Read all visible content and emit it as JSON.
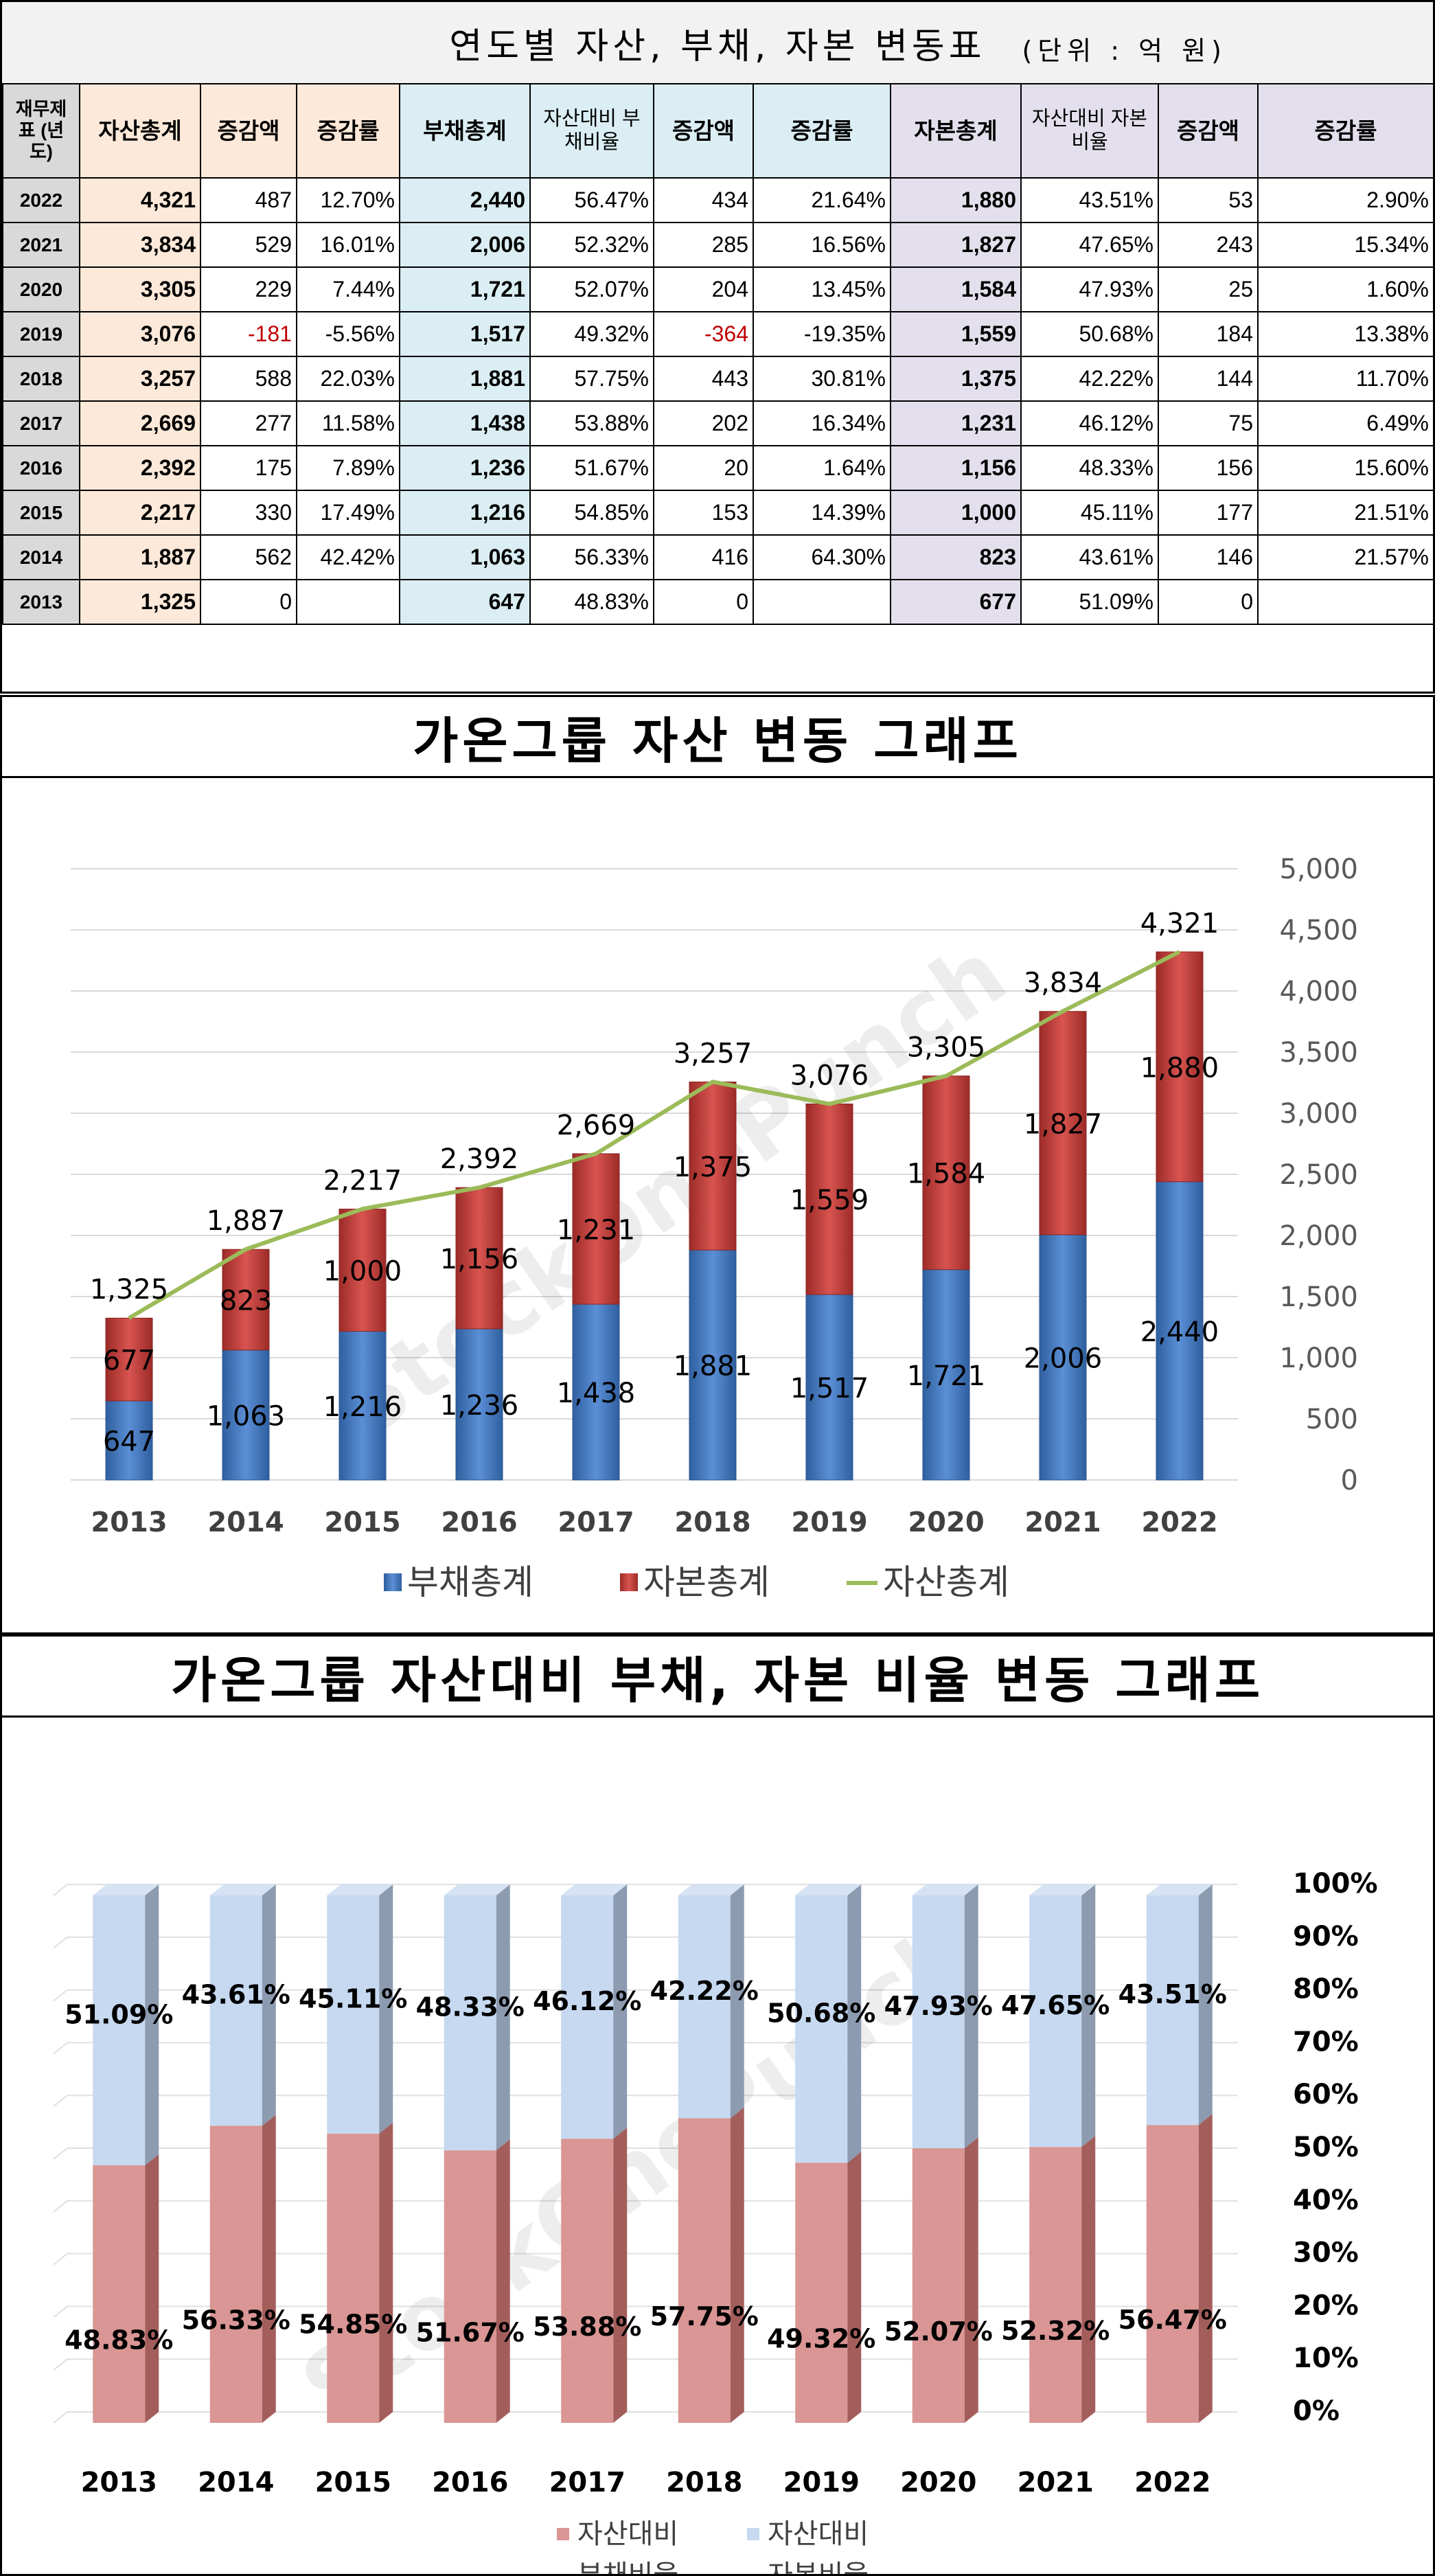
{
  "table": {
    "title": "연도별 자산, 부채, 자본 변동표",
    "unit": "(단위 : 억 원)",
    "headers": {
      "year": "재무제표 (년도)",
      "asset_total": "자산총계",
      "asset_change": "증감액",
      "asset_rate": "증감률",
      "debt_total": "부채총계",
      "debt_ratio": "자산대비 부채비율",
      "debt_change": "증감액",
      "debt_rate": "증감률",
      "equity_total": "자본총계",
      "equity_ratio": "자산대비 자본비율",
      "equity_change": "증감액",
      "equity_rate": "증감률"
    },
    "rows": [
      {
        "year": "2022",
        "asset": "4,321",
        "asset_chg": "487",
        "asset_rate": "12.70%",
        "debt": "2,440",
        "debt_ratio": "56.47%",
        "debt_chg": "434",
        "debt_rate": "21.64%",
        "equity": "1,880",
        "equity_ratio": "43.51%",
        "equity_chg": "53",
        "equity_rate": "2.90%"
      },
      {
        "year": "2021",
        "asset": "3,834",
        "asset_chg": "529",
        "asset_rate": "16.01%",
        "debt": "2,006",
        "debt_ratio": "52.32%",
        "debt_chg": "285",
        "debt_rate": "16.56%",
        "equity": "1,827",
        "equity_ratio": "47.65%",
        "equity_chg": "243",
        "equity_rate": "15.34%"
      },
      {
        "year": "2020",
        "asset": "3,305",
        "asset_chg": "229",
        "asset_rate": "7.44%",
        "debt": "1,721",
        "debt_ratio": "52.07%",
        "debt_chg": "204",
        "debt_rate": "13.45%",
        "equity": "1,584",
        "equity_ratio": "47.93%",
        "equity_chg": "25",
        "equity_rate": "1.60%"
      },
      {
        "year": "2019",
        "asset": "3,076",
        "asset_chg": "-181",
        "asset_rate": "-5.56%",
        "debt": "1,517",
        "debt_ratio": "49.32%",
        "debt_chg": "-364",
        "debt_rate": "-19.35%",
        "equity": "1,559",
        "equity_ratio": "50.68%",
        "equity_chg": "184",
        "equity_rate": "13.38%"
      },
      {
        "year": "2018",
        "asset": "3,257",
        "asset_chg": "588",
        "asset_rate": "22.03%",
        "debt": "1,881",
        "debt_ratio": "57.75%",
        "debt_chg": "443",
        "debt_rate": "30.81%",
        "equity": "1,375",
        "equity_ratio": "42.22%",
        "equity_chg": "144",
        "equity_rate": "11.70%"
      },
      {
        "year": "2017",
        "asset": "2,669",
        "asset_chg": "277",
        "asset_rate": "11.58%",
        "debt": "1,438",
        "debt_ratio": "53.88%",
        "debt_chg": "202",
        "debt_rate": "16.34%",
        "equity": "1,231",
        "equity_ratio": "46.12%",
        "equity_chg": "75",
        "equity_rate": "6.49%"
      },
      {
        "year": "2016",
        "asset": "2,392",
        "asset_chg": "175",
        "asset_rate": "7.89%",
        "debt": "1,236",
        "debt_ratio": "51.67%",
        "debt_chg": "20",
        "debt_rate": "1.64%",
        "equity": "1,156",
        "equity_ratio": "48.33%",
        "equity_chg": "156",
        "equity_rate": "15.60%"
      },
      {
        "year": "2015",
        "asset": "2,217",
        "asset_chg": "330",
        "asset_rate": "17.49%",
        "debt": "1,216",
        "debt_ratio": "54.85%",
        "debt_chg": "153",
        "debt_rate": "14.39%",
        "equity": "1,000",
        "equity_ratio": "45.11%",
        "equity_chg": "177",
        "equity_rate": "21.51%"
      },
      {
        "year": "2014",
        "asset": "1,887",
        "asset_chg": "562",
        "asset_rate": "42.42%",
        "debt": "1,063",
        "debt_ratio": "56.33%",
        "debt_chg": "416",
        "debt_rate": "64.30%",
        "equity": "823",
        "equity_ratio": "43.61%",
        "equity_chg": "146",
        "equity_rate": "21.57%"
      },
      {
        "year": "2013",
        "asset": "1,325",
        "asset_chg": "0",
        "asset_rate": "",
        "debt": "647",
        "debt_ratio": "48.83%",
        "debt_chg": "0",
        "debt_rate": "",
        "equity": "677",
        "equity_ratio": "51.09%",
        "equity_chg": "0",
        "equity_rate": ""
      }
    ]
  },
  "watermark": "StockOnePunch",
  "colors": {
    "debt": "#4a7ebb",
    "equity": "#c0504d",
    "asset_line": "#9bbb59",
    "debt_ratio": "#d99694",
    "equity_ratio": "#c6d9f1",
    "negative": "#c00000"
  },
  "chart_data": [
    {
      "type": "bar",
      "stacked": true,
      "title": "가온그룹 자산 변동 그래프",
      "categories": [
        "2013",
        "2014",
        "2015",
        "2016",
        "2017",
        "2018",
        "2019",
        "2020",
        "2021",
        "2022"
      ],
      "series": [
        {
          "name": "부채총계",
          "values": [
            647,
            1063,
            1216,
            1236,
            1438,
            1881,
            1517,
            1721,
            2006,
            2440
          ]
        },
        {
          "name": "자본총계",
          "values": [
            677,
            823,
            1000,
            1156,
            1231,
            1375,
            1559,
            1584,
            1827,
            1880
          ]
        },
        {
          "name": "자산총계",
          "type": "line",
          "values": [
            1325,
            1887,
            2217,
            2392,
            2669,
            3257,
            3076,
            3305,
            3834,
            4321
          ]
        }
      ],
      "value_labels": {
        "debt": [
          "647",
          "1,063",
          "1,216",
          "1,236",
          "1,438",
          "1,881",
          "1,517",
          "1,721",
          "2,006",
          "2,440"
        ],
        "equity": [
          "677",
          "823",
          "1,000",
          "1,156",
          "1,231",
          "1,375",
          "1,559",
          "1,584",
          "1,827",
          "1,880"
        ],
        "asset": [
          "1,325",
          "1,887",
          "2,217",
          "2,392",
          "2,669",
          "3,257",
          "3,076",
          "3,305",
          "3,834",
          "4,321"
        ]
      },
      "ylim": [
        0,
        5000
      ],
      "y_ticks": [
        "0",
        "500",
        "1,000",
        "1,500",
        "2,000",
        "2,500",
        "3,000",
        "3,500",
        "4,000",
        "4,500",
        "5,000"
      ],
      "y_axis_side": "right",
      "grid": true,
      "legend_position": "bottom"
    },
    {
      "type": "bar",
      "stacked": true,
      "percent": true,
      "title": "가온그룹 자산대비 부채, 자본 비율 변동 그래프",
      "categories": [
        "2013",
        "2014",
        "2015",
        "2016",
        "2017",
        "2018",
        "2019",
        "2020",
        "2021",
        "2022"
      ],
      "series": [
        {
          "name": "자산대비 부채비율",
          "values": [
            48.83,
            56.33,
            54.85,
            51.67,
            53.88,
            57.75,
            49.32,
            52.07,
            52.32,
            56.47
          ]
        },
        {
          "name": "자산대비 자본비율",
          "values": [
            51.09,
            43.61,
            45.11,
            48.33,
            46.12,
            42.22,
            50.68,
            47.93,
            47.65,
            43.51
          ]
        }
      ],
      "value_labels": {
        "debt": [
          "48.83%",
          "56.33%",
          "54.85%",
          "51.67%",
          "53.88%",
          "57.75%",
          "49.32%",
          "52.07%",
          "52.32%",
          "56.47%"
        ],
        "equity": [
          "51.09%",
          "43.61%",
          "45.11%",
          "48.33%",
          "46.12%",
          "42.22%",
          "50.68%",
          "47.93%",
          "47.65%",
          "43.51%"
        ]
      },
      "ylim": [
        0,
        100
      ],
      "y_ticks": [
        "0%",
        "10%",
        "20%",
        "30%",
        "40%",
        "50%",
        "60%",
        "70%",
        "80%",
        "90%",
        "100%"
      ],
      "y_axis_side": "right",
      "grid": true,
      "legend_position": "bottom",
      "legend_labels": [
        [
          "자산대비",
          "부채비율"
        ],
        [
          "자산대비",
          "자본비율"
        ]
      ]
    }
  ]
}
